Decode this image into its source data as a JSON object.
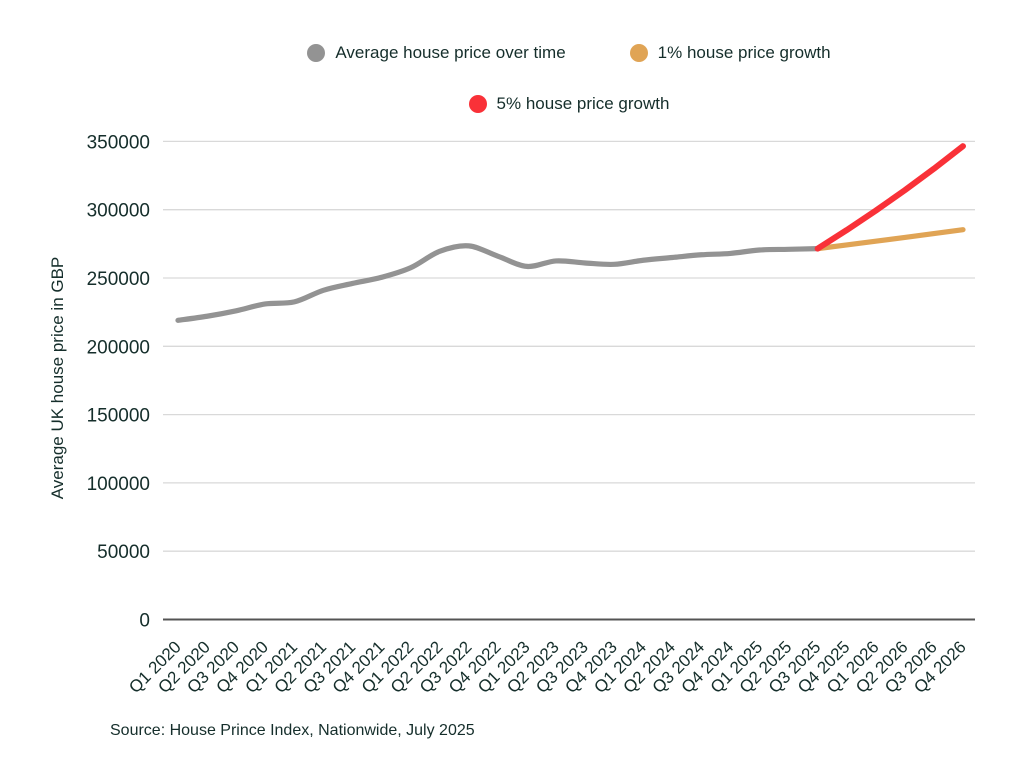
{
  "page": {
    "background": "#ffffff",
    "text_color": "#152e2b"
  },
  "colors": {
    "grid": "#d9d9d9",
    "zero_axis": "#545454",
    "gray_series": "#939393",
    "orange_series": "#e0a455",
    "red_series": "#f93138"
  },
  "chart_data": {
    "type": "line",
    "title": "",
    "xlabel": "",
    "ylabel": "Average UK house price in GBP",
    "ylim": [
      0,
      350000
    ],
    "yticks": [
      0,
      50000,
      100000,
      150000,
      200000,
      250000,
      300000,
      350000
    ],
    "grid": true,
    "legend_position": "top-center-two-rows",
    "legend_rows": [
      [
        0,
        1
      ],
      [
        2
      ]
    ],
    "categories": [
      "Q1 2020",
      "Q2 2020",
      "Q3 2020",
      "Q4 2020",
      "Q1 2021",
      "Q2 2021",
      "Q3 2021",
      "Q4 2021",
      "Q1 2022",
      "Q2 2022",
      "Q3 2022",
      "Q4 2022",
      "Q1 2023",
      "Q2 2023",
      "Q3 2023",
      "Q4 2023",
      "Q1 2024",
      "Q2 2024",
      "Q3 2024",
      "Q4 2024",
      "Q1 2025",
      "Q2 2025",
      "Q3 2025",
      "Q4 2025",
      "Q1 2026",
      "Q2 2026",
      "Q3 2026",
      "Q4 2026"
    ],
    "series": [
      {
        "name": "Average house price over time",
        "color": "#939393",
        "start_index": 0,
        "smooth": true,
        "stroke_width": 5.2,
        "values": [
          219000,
          222000,
          226000,
          231000,
          232500,
          241000,
          246000,
          250500,
          257500,
          269500,
          273500,
          266000,
          258500,
          262500,
          261000,
          260000,
          263000,
          265000,
          267000,
          268000,
          270500,
          271000,
          271500
        ]
      },
      {
        "name": "1% house price growth",
        "color": "#e0a455",
        "start_index": 22,
        "smooth": false,
        "stroke_width": 5.2,
        "values": [
          271500,
          274215,
          276957,
          279727,
          282524,
          285349
        ]
      },
      {
        "name": "5% house price growth",
        "color": "#f93138",
        "start_index": 22,
        "smooth": false,
        "stroke_width": 6,
        "values": [
          271500,
          285075,
          299329,
          314295,
          330010,
          346511
        ]
      }
    ],
    "source": "Source: House Prince Index, Nationwide, July 2025"
  }
}
